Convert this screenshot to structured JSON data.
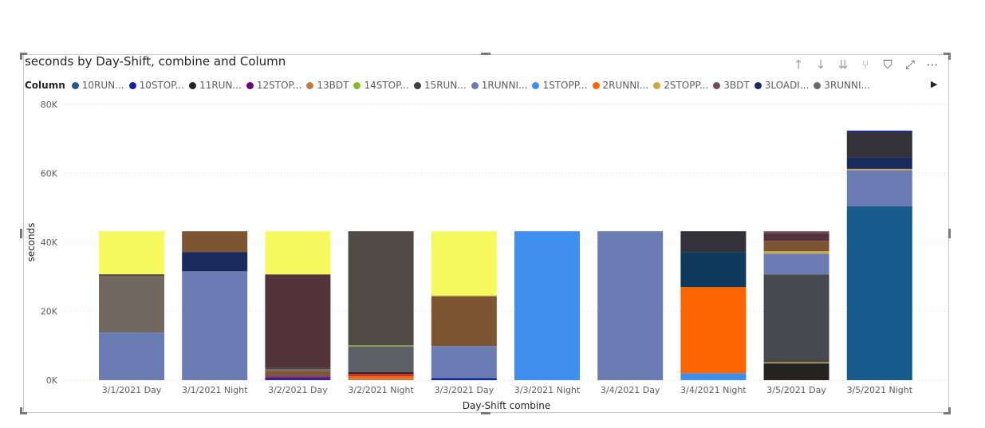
{
  "visual": {
    "title": "seconds by Day-Shift, combine and Column",
    "toolbar": [
      {
        "name": "drill-up-icon",
        "glyph": "↑",
        "dim": true
      },
      {
        "name": "drill-down-icon",
        "glyph": "↓",
        "dim": true
      },
      {
        "name": "next-level-icon",
        "glyph": "⇊",
        "dim": true
      },
      {
        "name": "expand-hierarchy-icon",
        "glyph": "⑂",
        "dim": true
      },
      {
        "name": "filter-icon",
        "glyph": "⛉",
        "dim": false
      },
      {
        "name": "focus-mode-icon",
        "glyph": "⤢",
        "dim": false
      },
      {
        "name": "more-options-icon",
        "glyph": "⋯",
        "dim": false
      }
    ]
  },
  "legend": {
    "title": "Column",
    "next_glyph": "▶",
    "items": [
      {
        "label": "10RUN...",
        "color": "#1f5a8c"
      },
      {
        "label": "10STOP...",
        "color": "#12239e"
      },
      {
        "label": "11RUN...",
        "color": "#252423"
      },
      {
        "label": "12STOP...",
        "color": "#6b007b"
      },
      {
        "label": "13BDT",
        "color": "#c07c43"
      },
      {
        "label": "14STOP...",
        "color": "#8ab52e"
      },
      {
        "label": "15RUN...",
        "color": "#3f3f47"
      },
      {
        "label": "1RUNNI...",
        "color": "#6b7bb4"
      },
      {
        "label": "1STOPP...",
        "color": "#3f8ff0"
      },
      {
        "label": "2RUNNI...",
        "color": "#fd6500"
      },
      {
        "label": "2STOPP...",
        "color": "#c7a94a"
      },
      {
        "label": "3BDT",
        "color": "#744a5e"
      },
      {
        "label": "3LOADI...",
        "color": "#1b2a5c"
      },
      {
        "label": "3RUNNI...",
        "color": "#726860"
      }
    ]
  },
  "chart_data": {
    "type": "stacked-bar",
    "title": "seconds by Day-Shift, combine and Column",
    "xlabel": "Day-Shift combine",
    "ylabel": "seconds",
    "ylim": [
      0,
      80000
    ],
    "yticks": [
      {
        "value": 0,
        "label": "0K"
      },
      {
        "value": 20000,
        "label": "20K"
      },
      {
        "value": 40000,
        "label": "40K"
      },
      {
        "value": 60000,
        "label": "60K"
      },
      {
        "value": 80000,
        "label": "80K"
      }
    ],
    "grid": true,
    "legend_position": "top-left",
    "categories": [
      {
        "label": "3/1/2021 Day",
        "segments": [
          {
            "color": "#6b7bb4",
            "value": 13800
          },
          {
            "color": "#726860",
            "value": 16600
          },
          {
            "color": "#252423",
            "value": 300
          },
          {
            "color": "#f7fa5e",
            "value": 12500
          }
        ]
      },
      {
        "label": "3/1/2021 Night",
        "segments": [
          {
            "color": "#6b7bb4",
            "value": 31600
          },
          {
            "color": "#1b2a5c",
            "value": 5600
          },
          {
            "color": "#7e5533",
            "value": 6000
          }
        ]
      },
      {
        "label": "3/2/2021 Day",
        "segments": [
          {
            "color": "#12239e",
            "value": 400
          },
          {
            "color": "#6b007b",
            "value": 400
          },
          {
            "color": "#744a5e",
            "value": 800
          },
          {
            "color": "#7e5533",
            "value": 1100
          },
          {
            "color": "#726860",
            "value": 500
          },
          {
            "color": "#3f3f47",
            "value": 300
          },
          {
            "color": "#54343c",
            "value": 27200
          },
          {
            "color": "#f7fa5e",
            "value": 12500
          }
        ]
      },
      {
        "label": "3/2/2021 Night",
        "segments": [
          {
            "color": "#c07c43",
            "value": 600
          },
          {
            "color": "#fd6500",
            "value": 500
          },
          {
            "color": "#d82c20",
            "value": 700
          },
          {
            "color": "#252423",
            "value": 500
          },
          {
            "color": "#5f6067",
            "value": 7500
          },
          {
            "color": "#8ab52e",
            "value": 300
          },
          {
            "color": "#514b45",
            "value": 33100
          }
        ]
      },
      {
        "label": "3/3/2021 Day",
        "segments": [
          {
            "color": "#12239e",
            "value": 600
          },
          {
            "color": "#6b7bb4",
            "value": 9300
          },
          {
            "color": "#7e5533",
            "value": 14400
          },
          {
            "color": "#c7a94a",
            "value": 300
          },
          {
            "color": "#f7fa5e",
            "value": 18600
          }
        ]
      },
      {
        "label": "3/3/2021 Night",
        "segments": [
          {
            "color": "#3f8ff0",
            "value": 43200
          }
        ]
      },
      {
        "label": "3/4/2021 Day",
        "segments": [
          {
            "color": "#6b7bb4",
            "value": 43200
          }
        ]
      },
      {
        "label": "3/4/2021 Night",
        "segments": [
          {
            "color": "#3f8ff0",
            "value": 2000
          },
          {
            "color": "#fd6500",
            "value": 25000
          },
          {
            "color": "#0f3a5c",
            "value": 10200
          },
          {
            "color": "#323238",
            "value": 6000
          }
        ]
      },
      {
        "label": "3/5/2021 Day",
        "segments": [
          {
            "color": "#252423",
            "value": 4900
          },
          {
            "color": "#c7a94a",
            "value": 300
          },
          {
            "color": "#484950",
            "value": 25500
          },
          {
            "color": "#6b7bb4",
            "value": 6000
          },
          {
            "color": "#c7a94a",
            "value": 700
          },
          {
            "color": "#7e5533",
            "value": 3000
          },
          {
            "color": "#54343c",
            "value": 2300
          },
          {
            "color": "#744a5e",
            "value": 500
          }
        ]
      },
      {
        "label": "3/5/2021 Night",
        "segments": [
          {
            "color": "#175a8c",
            "value": 50400
          },
          {
            "color": "#6b7bb4",
            "value": 10500
          },
          {
            "color": "#c7a94a",
            "value": 400
          },
          {
            "color": "#1b2a5c",
            "value": 3300
          },
          {
            "color": "#323238",
            "value": 7400
          },
          {
            "color": "#12239e",
            "value": 400
          }
        ]
      }
    ]
  }
}
